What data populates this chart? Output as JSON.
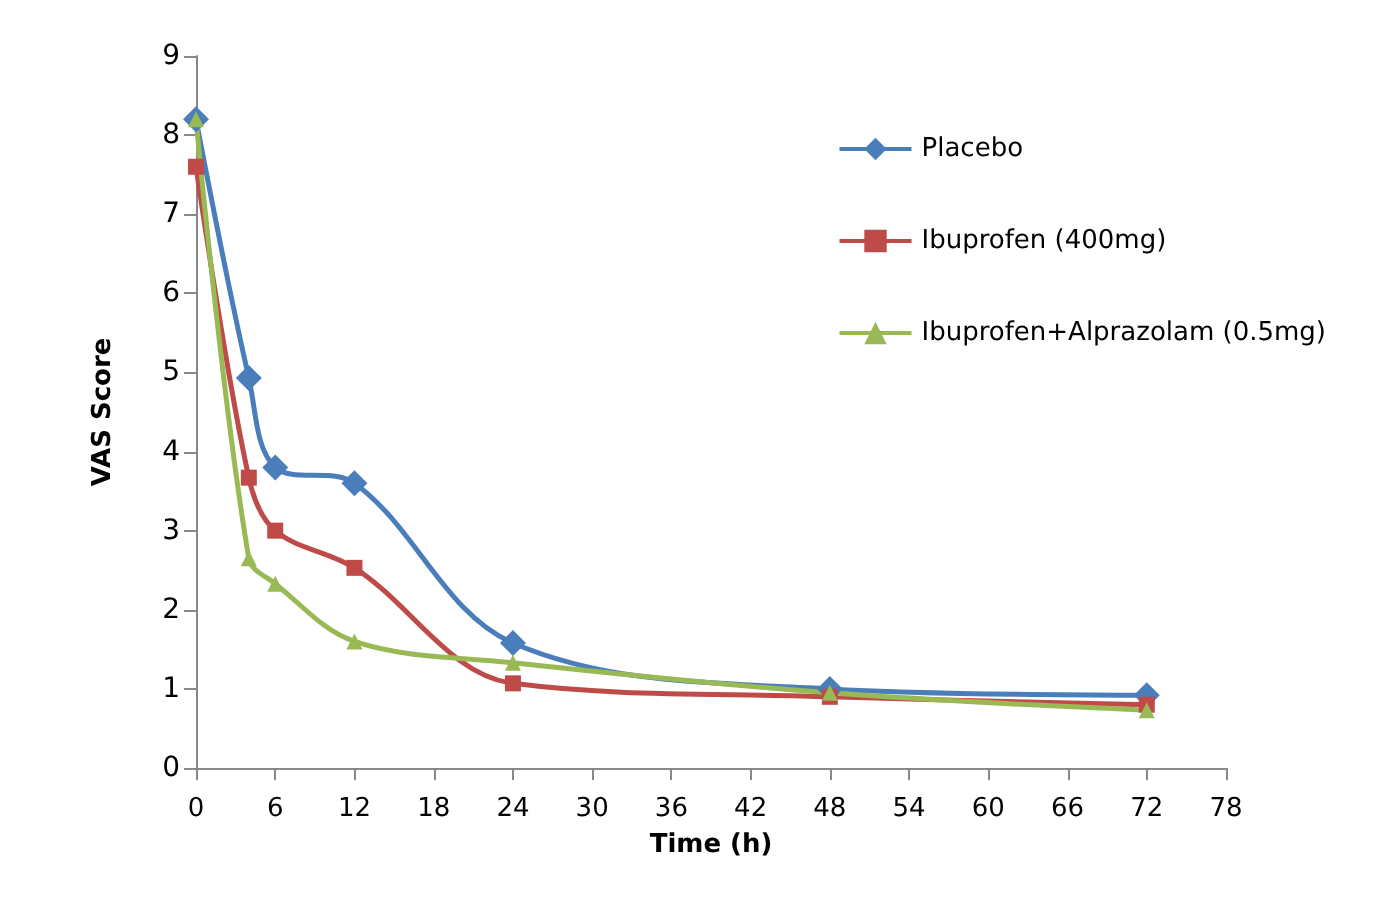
{
  "chart_data": {
    "type": "line",
    "xlabel": "Time (h)",
    "ylabel": "VAS Score",
    "x": [
      0,
      4,
      6,
      12,
      24,
      48,
      72
    ],
    "series": [
      {
        "name": "Placebo",
        "color": "#4a7ebb",
        "marker": "diamond",
        "values": [
          8.2,
          4.93,
          3.8,
          3.6,
          1.58,
          1.0,
          0.92
        ]
      },
      {
        "name": "Ibuprofen (400mg)",
        "color": "#be4b48",
        "marker": "square",
        "values": [
          7.6,
          3.67,
          3.0,
          2.53,
          1.07,
          0.9,
          0.8
        ]
      },
      {
        "name": "Ibuprofen+Alprazolam (0.5mg)",
        "color": "#98b954",
        "marker": "triangle",
        "values": [
          8.2,
          2.65,
          2.33,
          1.6,
          1.33,
          0.95,
          0.73
        ]
      }
    ],
    "xlim": [
      0,
      78
    ],
    "xticks": [
      0,
      6,
      12,
      18,
      24,
      30,
      36,
      42,
      48,
      54,
      60,
      66,
      72,
      78
    ],
    "ylim": [
      0,
      9
    ],
    "yticks": [
      0,
      1,
      2,
      3,
      4,
      5,
      6,
      7,
      8,
      9
    ],
    "grid": false,
    "legend": "top right",
    "line_style": "solid"
  }
}
